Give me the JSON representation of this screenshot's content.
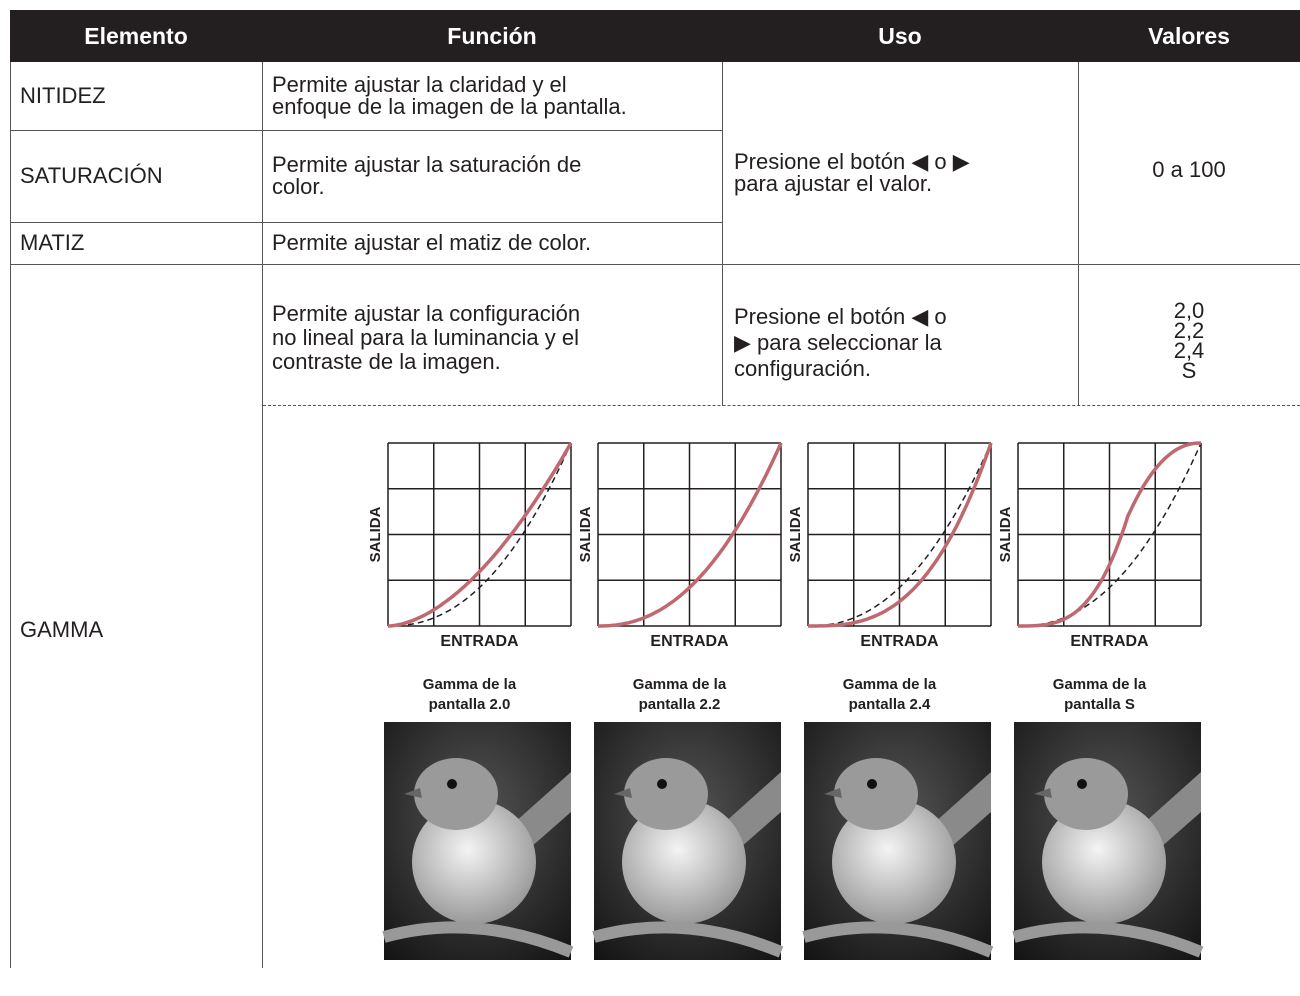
{
  "header": {
    "columns": [
      "Elemento",
      "Función",
      "Uso",
      "Valores"
    ]
  },
  "rows": [
    {
      "element": "NITIDEZ",
      "function": "Permite ajustar la claridad y el\nenfoque de la imagen de la pantalla."
    },
    {
      "element": "SATURACIÓN",
      "function": "Permite ajustar la saturación de\ncolor."
    },
    {
      "element": "MATIZ",
      "function": "Permite ajustar el matiz de color."
    }
  ],
  "shared_use": "Presione el botón ◀ o ▶\npara ajustar el valor.",
  "shared_values": "0 a 100",
  "gamma": {
    "element": "GAMMA",
    "function": "Permite ajustar la configuración\nno lineal para la luminancia y el\ncontraste de la imagen.",
    "use": "Presione el botón ◀ o\n▶ para seleccionar la\nconfiguración.",
    "values": [
      "2,0",
      "2,2",
      "2,4",
      "S"
    ],
    "panels": [
      {
        "y_label": "SALIDA",
        "x_label": "ENTRADA",
        "caption": "Gamma de la\npantalla 2.0"
      },
      {
        "y_label": "SALIDA",
        "x_label": "ENTRADA",
        "caption": "Gamma de la\npantalla 2.2"
      },
      {
        "y_label": "SALIDA",
        "x_label": "ENTRADA",
        "caption": "Gamma de la\npantalla 2.4"
      },
      {
        "y_label": "SALIDA",
        "x_label": "ENTRADA",
        "caption": "Gamma de la\npantalla S"
      }
    ]
  }
}
